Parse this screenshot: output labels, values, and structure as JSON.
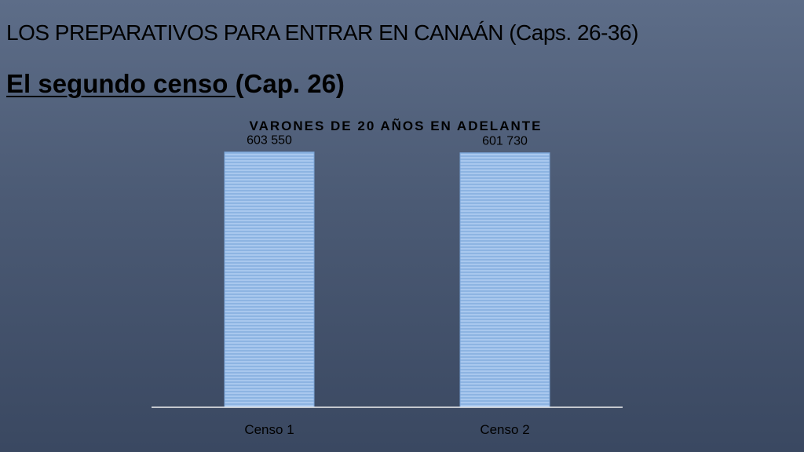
{
  "slide": {
    "heading": "LOS PREPARATIVOS PARA ENTRAR EN CANAÁN (Caps. 26-36)",
    "subheading_underlined": "El segundo censo ",
    "subheading_rest": "(Cap. 26)"
  },
  "colors": {
    "bar_fill": "#8db4e2",
    "bar_stripe": "#a9c8ee",
    "axis_line": "#f2f2f2",
    "text": "#000000"
  },
  "chart_data": {
    "type": "bar",
    "title": "VARONES DE 20 AÑOS EN ADELANTE",
    "categories": [
      "Censo 1",
      "Censo 2"
    ],
    "values": [
      603550,
      601730
    ],
    "data_labels": [
      "603 550",
      "601 730"
    ],
    "xlabel": "",
    "ylabel": "",
    "ylim": [
      0,
      655000
    ],
    "grid": false,
    "legend": "none"
  }
}
